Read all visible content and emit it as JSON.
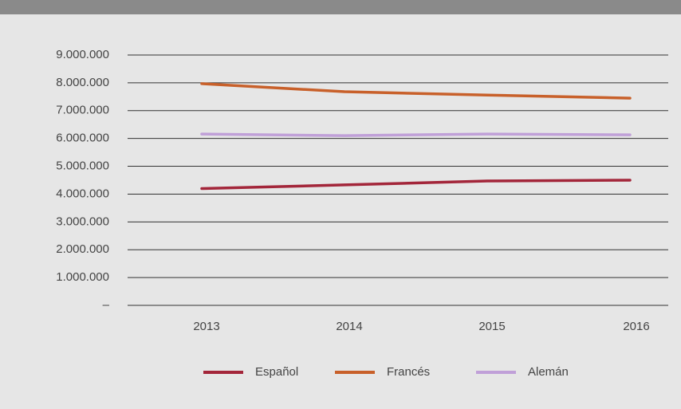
{
  "chart_data": {
    "type": "line",
    "categories": [
      "2013",
      "2014",
      "2015",
      "2016"
    ],
    "series": [
      {
        "name": "Español",
        "color": "#a3263a",
        "values": [
          4200000,
          4330000,
          4470000,
          4500000
        ]
      },
      {
        "name": "Francés",
        "color": "#c8602a",
        "values": [
          7970000,
          7680000,
          7560000,
          7450000
        ]
      },
      {
        "name": "Alemán",
        "color": "#c0a0d8",
        "values": [
          6160000,
          6100000,
          6160000,
          6130000
        ]
      }
    ],
    "ylim": [
      0,
      9000000
    ],
    "yticks": [
      {
        "value": 0,
        "label": "–"
      },
      {
        "value": 1000000,
        "label": "1.000.000"
      },
      {
        "value": 2000000,
        "label": "2.000.000"
      },
      {
        "value": 3000000,
        "label": "3.000.000"
      },
      {
        "value": 4000000,
        "label": "4.000.000"
      },
      {
        "value": 5000000,
        "label": "5.000.000"
      },
      {
        "value": 6000000,
        "label": "6.000.000"
      },
      {
        "value": 7000000,
        "label": "7.000.000"
      },
      {
        "value": 8000000,
        "label": "8.000.000"
      },
      {
        "value": 9000000,
        "label": "9.000.000"
      }
    ],
    "grid": true,
    "legend": "bottom"
  }
}
